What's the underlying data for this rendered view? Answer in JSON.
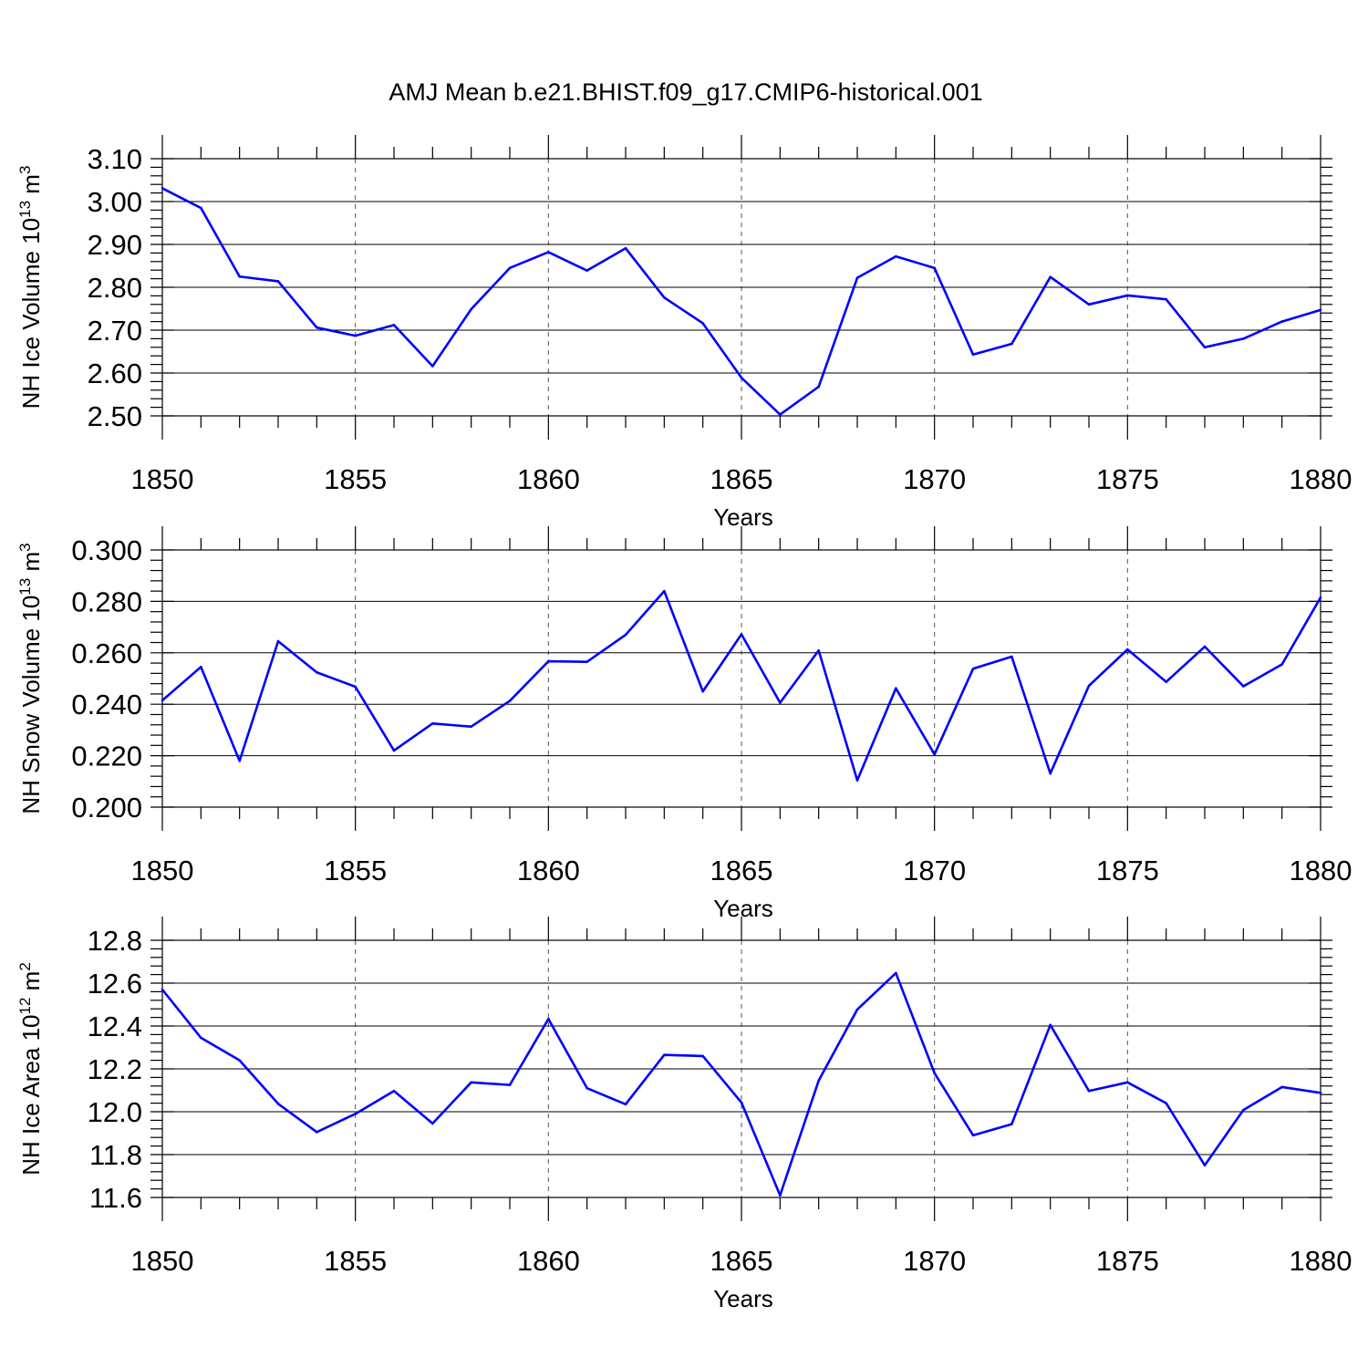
{
  "figure_title": "AMJ Mean b.e21.BHIST.f09_g17.CMIP6-historical.001",
  "colors": {
    "series": "#0000ff",
    "axes": "#000000",
    "grid": "#555555"
  },
  "chart_data": [
    {
      "type": "line",
      "title": "",
      "xlabel": "Years",
      "ylabel": "NH Ice Volume 10^13 m^3",
      "ylabel_parts": {
        "base": "NH Ice Volume 10",
        "exp": "13",
        "unit": " m",
        "unit_exp": "3"
      },
      "xlim": [
        1850,
        1880
      ],
      "ylim": [
        2.5,
        3.1
      ],
      "x_ticks": [
        1850,
        1855,
        1860,
        1865,
        1870,
        1875,
        1880
      ],
      "x_tick_labels": [
        "1850",
        "1855",
        "1860",
        "1865",
        "1870",
        "1875",
        "1880"
      ],
      "y_ticks": [
        2.5,
        2.6,
        2.7,
        2.8,
        2.9,
        3.0,
        3.1
      ],
      "y_tick_labels": [
        "2.50",
        "2.60",
        "2.70",
        "2.80",
        "2.90",
        "3.00",
        "3.10"
      ],
      "grid": "dashed vertical at major x ticks",
      "x": [
        1850,
        1851,
        1852,
        1853,
        1854,
        1855,
        1856,
        1857,
        1858,
        1859,
        1860,
        1861,
        1862,
        1863,
        1864,
        1865,
        1866,
        1867,
        1868,
        1869,
        1870,
        1871,
        1872,
        1873,
        1874,
        1875,
        1876,
        1877,
        1878,
        1879,
        1880
      ],
      "series": [
        {
          "values": [
            3.031,
            2.985,
            2.825,
            2.814,
            2.706,
            2.687,
            2.712,
            2.616,
            2.749,
            2.845,
            2.882,
            2.839,
            2.891,
            2.776,
            2.716,
            2.589,
            2.503,
            2.568,
            2.822,
            2.872,
            2.845,
            2.643,
            2.668,
            2.824,
            2.76,
            2.781,
            2.772,
            2.66,
            2.68,
            2.72,
            2.747
          ],
          "color": "#0000ff"
        }
      ]
    },
    {
      "type": "line",
      "title": "",
      "xlabel": "Years",
      "ylabel": "NH Snow Volume 10^13 m^3",
      "ylabel_parts": {
        "base": "NH Snow Volume 10",
        "exp": "13",
        "unit": " m",
        "unit_exp": "3"
      },
      "xlim": [
        1850,
        1880
      ],
      "ylim": [
        0.2,
        0.3
      ],
      "x_ticks": [
        1850,
        1855,
        1860,
        1865,
        1870,
        1875,
        1880
      ],
      "x_tick_labels": [
        "1850",
        "1855",
        "1860",
        "1865",
        "1870",
        "1875",
        "1880"
      ],
      "y_ticks": [
        0.2,
        0.22,
        0.24,
        0.26,
        0.28,
        0.3
      ],
      "y_tick_labels": [
        "0.200",
        "0.220",
        "0.240",
        "0.260",
        "0.280",
        "0.300"
      ],
      "grid": "dashed vertical at major x ticks",
      "x": [
        1850,
        1851,
        1852,
        1853,
        1854,
        1855,
        1856,
        1857,
        1858,
        1859,
        1860,
        1861,
        1862,
        1863,
        1864,
        1865,
        1866,
        1867,
        1868,
        1869,
        1870,
        1871,
        1872,
        1873,
        1874,
        1875,
        1876,
        1877,
        1878,
        1879,
        1880
      ],
      "series": [
        {
          "values": [
            0.2415,
            0.2545,
            0.218,
            0.2645,
            0.2524,
            0.2468,
            0.222,
            0.2325,
            0.2313,
            0.2413,
            0.2567,
            0.2565,
            0.267,
            0.284,
            0.245,
            0.2672,
            0.2406,
            0.2609,
            0.2104,
            0.2462,
            0.2205,
            0.2538,
            0.2585,
            0.2131,
            0.2472,
            0.2613,
            0.2487,
            0.2624,
            0.247,
            0.2555,
            0.2815
          ],
          "color": "#0000ff"
        }
      ]
    },
    {
      "type": "line",
      "title": "",
      "xlabel": "Years",
      "ylabel": "NH Ice Area 10^12 m^2",
      "ylabel_parts": {
        "base": "NH Ice Area 10",
        "exp": "12",
        "unit": " m",
        "unit_exp": "2"
      },
      "xlim": [
        1850,
        1880
      ],
      "ylim": [
        11.6,
        12.8
      ],
      "x_ticks": [
        1850,
        1855,
        1860,
        1865,
        1870,
        1875,
        1880
      ],
      "x_tick_labels": [
        "1850",
        "1855",
        "1860",
        "1865",
        "1870",
        "1875",
        "1880"
      ],
      "y_ticks": [
        11.6,
        11.8,
        12.0,
        12.2,
        12.4,
        12.6,
        12.8
      ],
      "y_tick_labels": [
        "11.6",
        "11.8",
        "12.0",
        "12.2",
        "12.4",
        "12.6",
        "12.8"
      ],
      "grid": "dashed vertical at major x ticks",
      "x": [
        1850,
        1851,
        1852,
        1853,
        1854,
        1855,
        1856,
        1857,
        1858,
        1859,
        1860,
        1861,
        1862,
        1863,
        1864,
        1865,
        1866,
        1867,
        1868,
        1869,
        1870,
        1871,
        1872,
        1873,
        1874,
        1875,
        1876,
        1877,
        1878,
        1879,
        1880
      ],
      "series": [
        {
          "values": [
            12.57,
            12.345,
            12.24,
            12.037,
            11.905,
            11.99,
            12.097,
            11.945,
            12.137,
            12.125,
            12.433,
            12.11,
            12.035,
            12.265,
            12.26,
            12.043,
            11.61,
            12.145,
            12.477,
            12.647,
            12.18,
            11.89,
            11.942,
            12.405,
            12.097,
            12.137,
            12.04,
            11.75,
            12.008,
            12.115,
            12.088
          ],
          "color": "#0000ff"
        }
      ]
    }
  ]
}
